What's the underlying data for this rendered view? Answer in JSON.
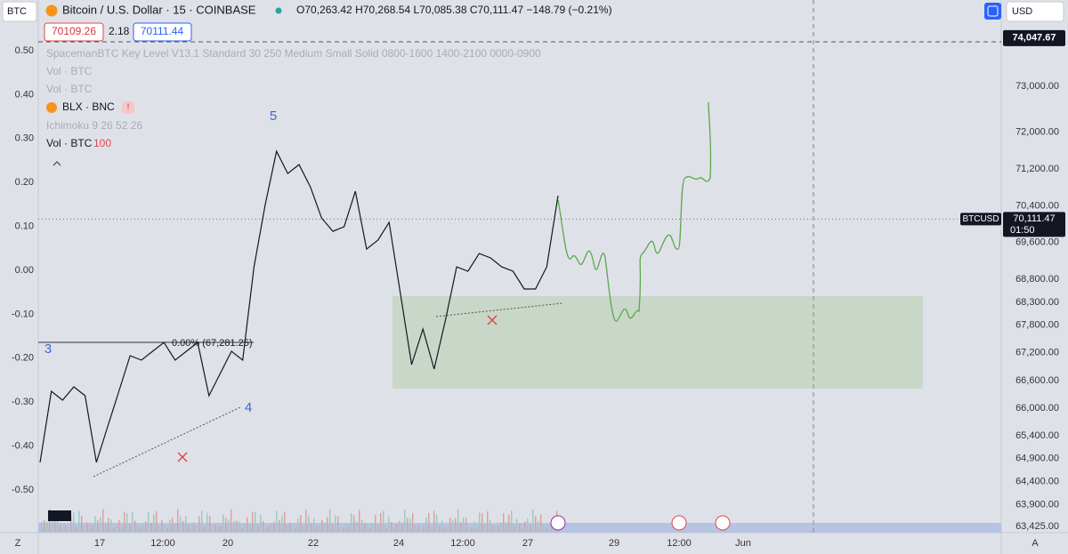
{
  "header": {
    "symbol": "BTC",
    "title": "Bitcoin / U.S. Dollar · 15 · COINBASE",
    "open": "O70,263.42",
    "high": "H70,268.54",
    "low": "L70,085.38",
    "close": "C70,111.47",
    "change": "−148.79 (−0.21%)",
    "bid": "70109.26",
    "spread": "2.18",
    "ask": "70111.44",
    "currency": "USD"
  },
  "indicators": [
    "SpacemanBTC Key Level V13.1 Standard 30 250 Medium Small Solid 0800-1600 1400-2100 0000-0900",
    "Vol · BTC",
    "Vol · BTC",
    "BLX · BNC",
    "Ichimoku 9 26 52 26",
    "Vol · BTC"
  ],
  "volume_length": "100",
  "annotations": {
    "wave_3": "3",
    "wave_4": "4",
    "wave_5": "5",
    "fib_label": "0.00% (67,281.25)"
  },
  "left_axis": [
    {
      "value": 0.5,
      "label": "0.50"
    },
    {
      "value": 0.4,
      "label": "0.40"
    },
    {
      "value": 0.3,
      "label": "0.30"
    },
    {
      "value": 0.2,
      "label": "0.20"
    },
    {
      "value": 0.1,
      "label": "0.10"
    },
    {
      "value": 0,
      "label": "0.00"
    },
    {
      "value": -0.1,
      "label": "-0.10"
    },
    {
      "value": -0.2,
      "label": "-0.20"
    },
    {
      "value": -0.3,
      "label": "-0.30"
    },
    {
      "value": -0.4,
      "label": "-0.40"
    },
    {
      "value": -0.5,
      "label": "-0.50"
    }
  ],
  "right_axis": [
    {
      "value": 73000,
      "label": "73,000.00"
    },
    {
      "value": 72000,
      "label": "72,000.00"
    },
    {
      "value": 71200,
      "label": "71,200.00"
    },
    {
      "value": 70400,
      "label": "70,400.00"
    },
    {
      "value": 69600,
      "label": "69,600.00"
    },
    {
      "value": 68800,
      "label": "68,800.00"
    },
    {
      "value": 68300,
      "label": "68,300.00"
    },
    {
      "value": 67800,
      "label": "67,800.00"
    },
    {
      "value": 67200,
      "label": "67,200.00"
    },
    {
      "value": 66600,
      "label": "66,600.00"
    },
    {
      "value": 66000,
      "label": "66,000.00"
    },
    {
      "value": 65400,
      "label": "65,400.00"
    },
    {
      "value": 64900,
      "label": "64,900.00"
    },
    {
      "value": 64400,
      "label": "64,400.00"
    },
    {
      "value": 63900,
      "label": "63,900.00"
    },
    {
      "value": 63425,
      "label": "63,425.00"
    }
  ],
  "price_marker": {
    "value": 74047.67,
    "label": "74,047.67"
  },
  "current": {
    "symbol": "BTCUSD",
    "price": {
      "value": 70111.47,
      "label": "70,111.47"
    },
    "countdown": "01:50"
  },
  "time_axis": [
    "17",
    "12:00",
    "20",
    "22",
    "24",
    "12:00",
    "27",
    "29",
    "12:00",
    "Jun"
  ],
  "scale_buttons": {
    "left": "Z",
    "right": "A"
  },
  "price_series": [
    64818,
    66365,
    66171,
    66461,
    66268,
    64818,
    65591,
    66365,
    67138,
    67042,
    67235,
    67428,
    67042,
    67235,
    67428,
    66268,
    66751,
    67235,
    67042,
    69072,
    70426,
    71586,
    71103,
    71296,
    70813,
    70136,
    69846,
    69943,
    70716,
    69459,
    69652,
    70039,
    68492,
    66945,
    67718,
    66848,
    67912,
    69072,
    68976,
    69362,
    69266,
    69072,
    68976,
    68589,
    68589,
    69072,
    70619
  ]
}
